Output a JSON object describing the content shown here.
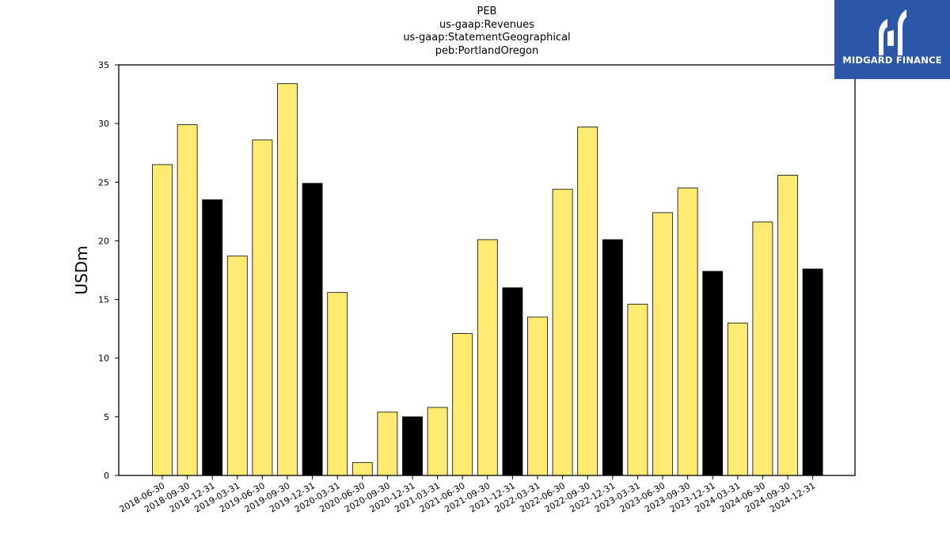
{
  "title_lines": [
    "PEB",
    "us-gaap:Revenues",
    "us-gaap:StatementGeographical",
    "peb:PortlandOregon"
  ],
  "logo": {
    "text": "MIDGARD FINANCE",
    "background": "#2c57a8"
  },
  "colors": {
    "default_bar": "#ffeb72",
    "q4_bar": "#000000",
    "edge": "#000000"
  },
  "chart_data": {
    "type": "bar",
    "ylabel": "USDm",
    "ylim": [
      0,
      35
    ],
    "yticks": [
      0,
      5,
      10,
      15,
      20,
      25,
      30,
      35
    ],
    "categories": [
      "2018-06-30",
      "2018-09-30",
      "2018-12-31",
      "2019-03-31",
      "2019-06-30",
      "2019-09-30",
      "2019-12-31",
      "2020-03-31",
      "2020-06-30",
      "2020-09-30",
      "2020-12-31",
      "2021-03-31",
      "2021-06-30",
      "2021-09-30",
      "2021-12-31",
      "2022-03-31",
      "2022-06-30",
      "2022-09-30",
      "2022-12-31",
      "2023-03-31",
      "2023-06-30",
      "2023-09-30",
      "2023-12-31",
      "2024-03-31",
      "2024-06-30",
      "2024-09-30",
      "2024-12-31"
    ],
    "values": [
      26.5,
      29.9,
      23.5,
      18.7,
      28.6,
      33.4,
      24.9,
      15.6,
      1.1,
      5.4,
      5.0,
      5.8,
      12.1,
      20.1,
      16.0,
      13.5,
      24.4,
      29.7,
      20.1,
      14.6,
      22.4,
      24.5,
      17.4,
      13.0,
      21.6,
      25.6,
      17.6
    ]
  }
}
